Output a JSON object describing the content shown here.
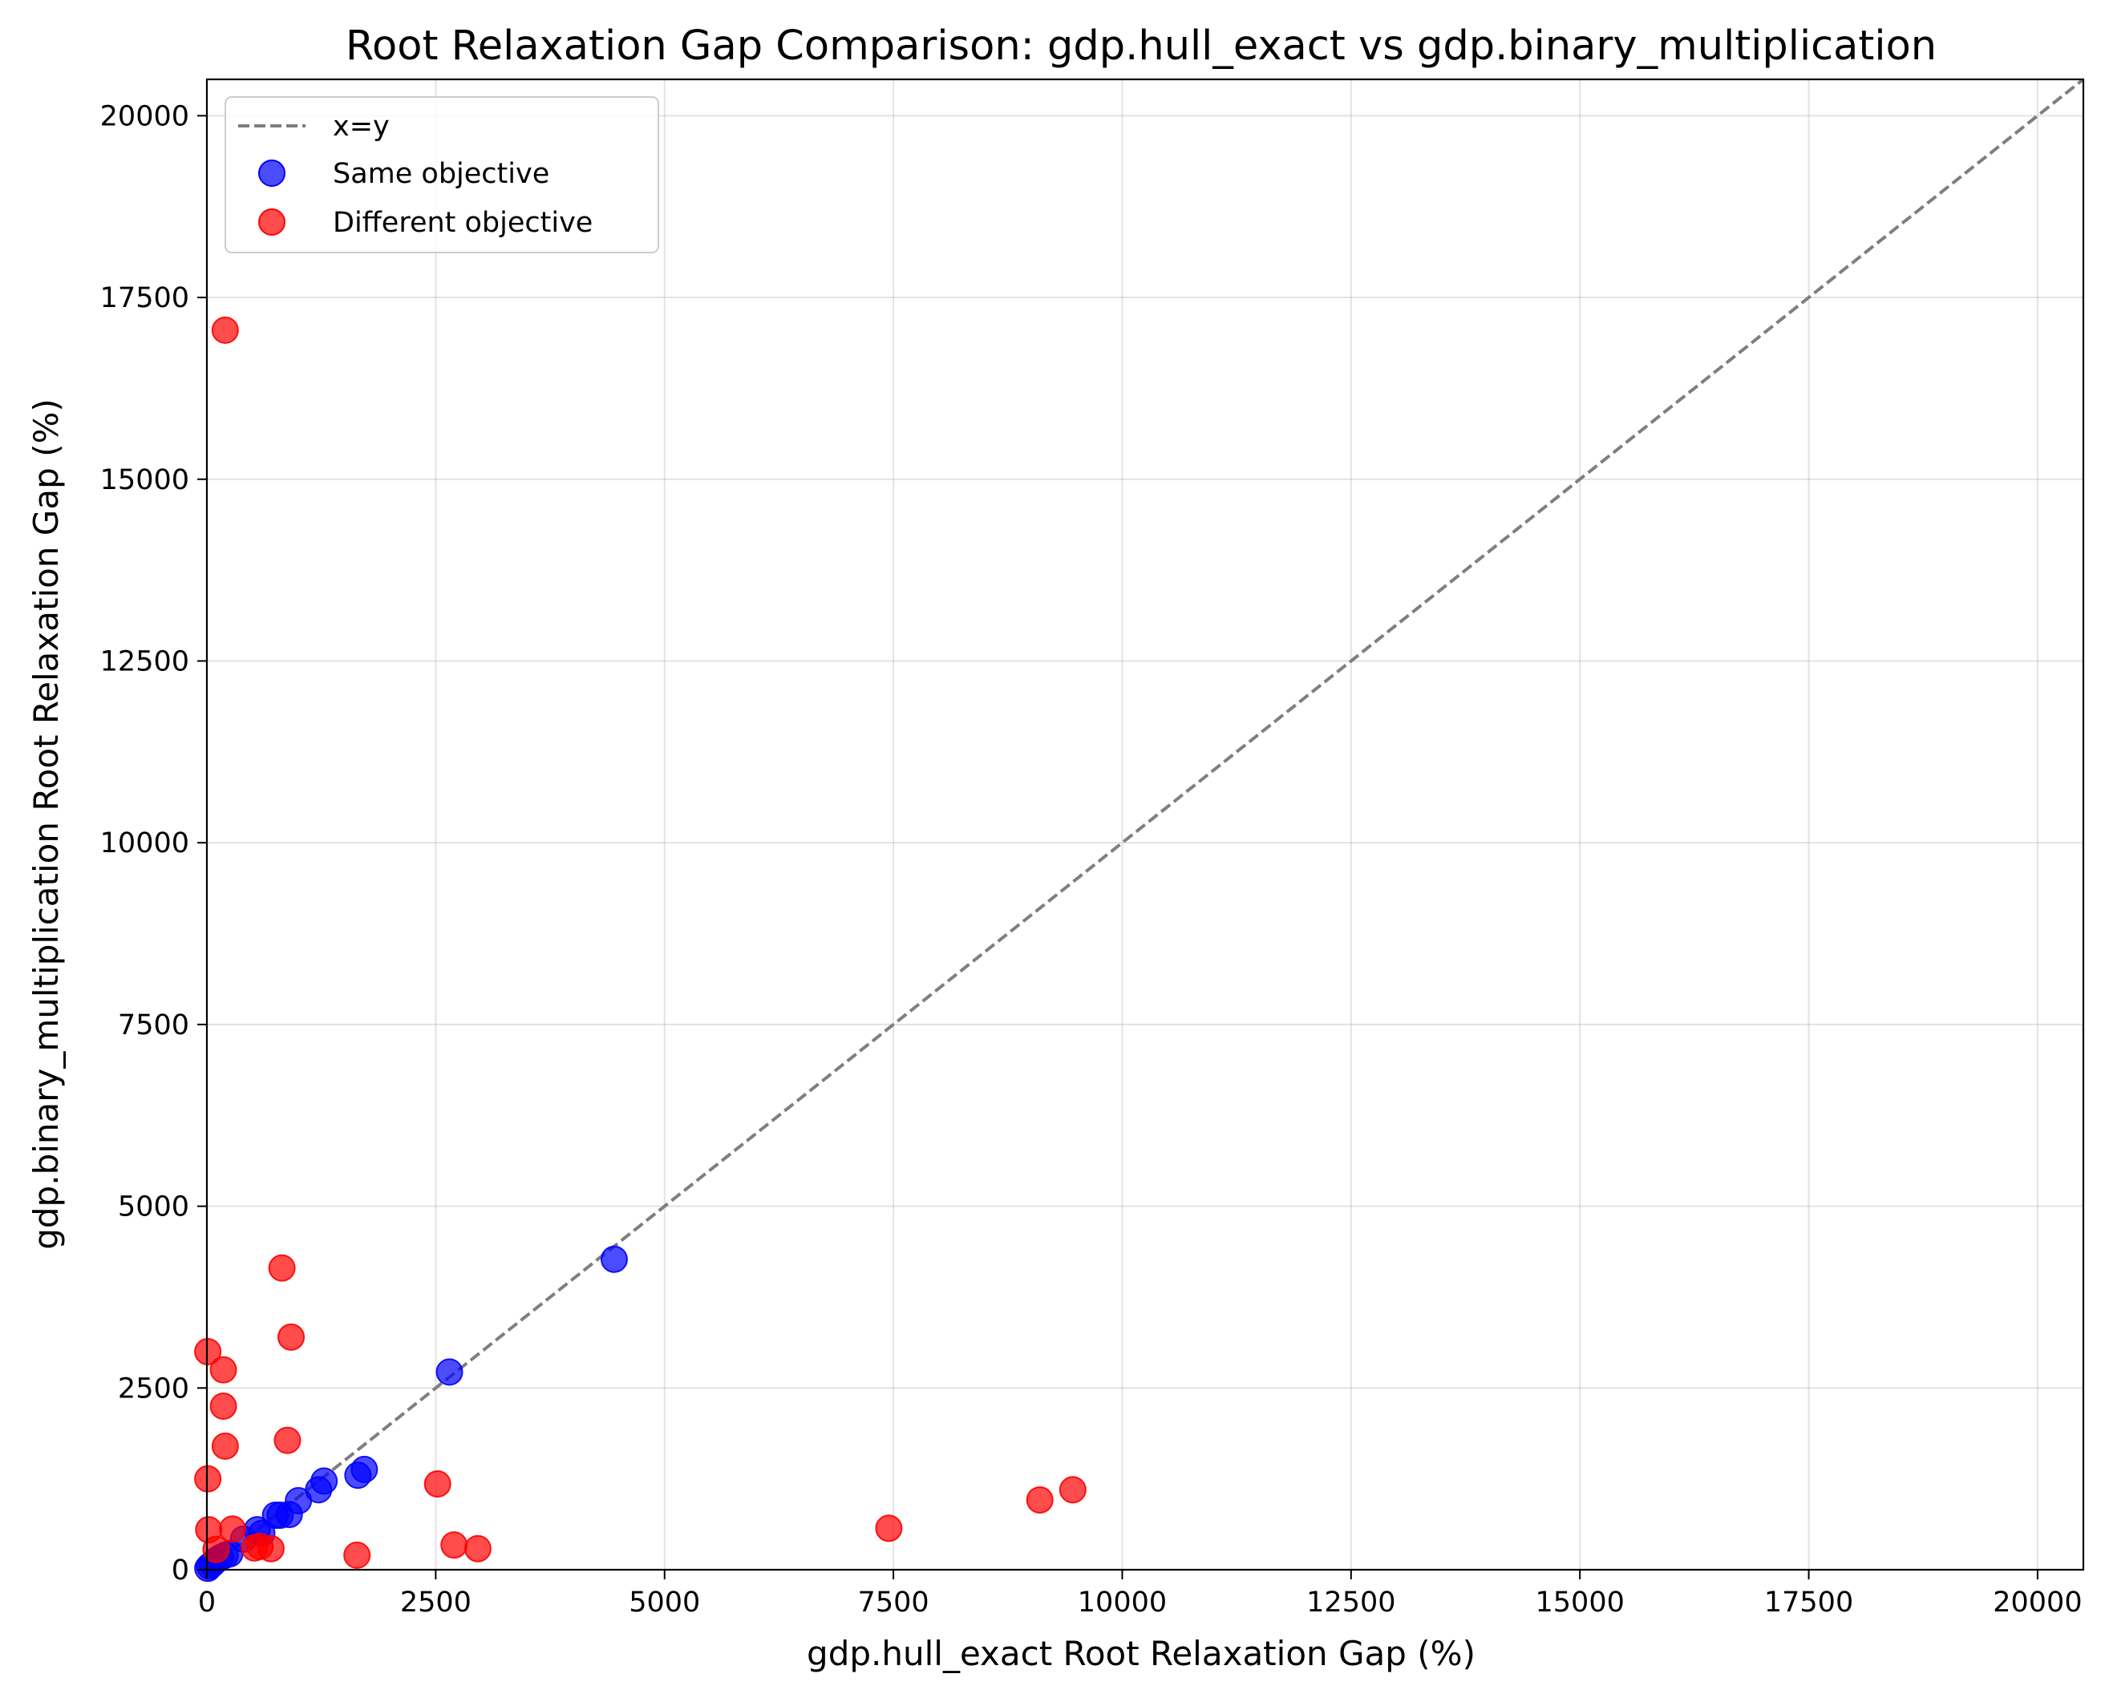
{
  "chart_data": {
    "type": "scatter",
    "title": "Root Relaxation Gap Comparison: gdp.hull_exact vs gdp.binary_multiplication",
    "xlabel": "gdp.hull_exact Root Relaxation Gap (%)",
    "ylabel": "gdp.binary_multiplication Root Relaxation Gap (%)",
    "xlim": [
      0,
      20500
    ],
    "ylim": [
      0,
      20500
    ],
    "xticks": [
      0,
      2500,
      5000,
      7500,
      10000,
      12500,
      15000,
      17500,
      20000
    ],
    "yticks": [
      0,
      2500,
      5000,
      7500,
      10000,
      12500,
      15000,
      17500,
      20000
    ],
    "grid": true,
    "legend_position": "top-left",
    "reference_line": {
      "label": "x=y",
      "color": "#7f7f7f",
      "style": "dashed"
    },
    "series": [
      {
        "name": "Same objective",
        "color": "#0000ff",
        "points": [
          [
            10,
            20
          ],
          [
            30,
            50
          ],
          [
            60,
            80
          ],
          [
            100,
            130
          ],
          [
            150,
            170
          ],
          [
            200,
            200
          ],
          [
            250,
            220
          ],
          [
            400,
            420
          ],
          [
            550,
            550
          ],
          [
            600,
            500
          ],
          [
            750,
            750
          ],
          [
            800,
            750
          ],
          [
            900,
            760
          ],
          [
            1000,
            950
          ],
          [
            1220,
            1100
          ],
          [
            1280,
            1220
          ],
          [
            1650,
            1300
          ],
          [
            1720,
            1380
          ],
          [
            2650,
            2720
          ],
          [
            4450,
            4270
          ]
        ]
      },
      {
        "name": "Different objective",
        "color": "#ff0000",
        "points": [
          [
            200,
            17050
          ],
          [
            820,
            4150
          ],
          [
            920,
            3200
          ],
          [
            10,
            3000
          ],
          [
            180,
            2750
          ],
          [
            180,
            2250
          ],
          [
            200,
            1700
          ],
          [
            880,
            1780
          ],
          [
            10,
            1250
          ],
          [
            2520,
            1180
          ],
          [
            280,
            560
          ],
          [
            20,
            550
          ],
          [
            100,
            280
          ],
          [
            520,
            300
          ],
          [
            580,
            320
          ],
          [
            700,
            290
          ],
          [
            1640,
            200
          ],
          [
            2700,
            340
          ],
          [
            2960,
            290
          ],
          [
            7450,
            570
          ],
          [
            9100,
            960
          ],
          [
            9460,
            1100
          ]
        ]
      }
    ]
  }
}
